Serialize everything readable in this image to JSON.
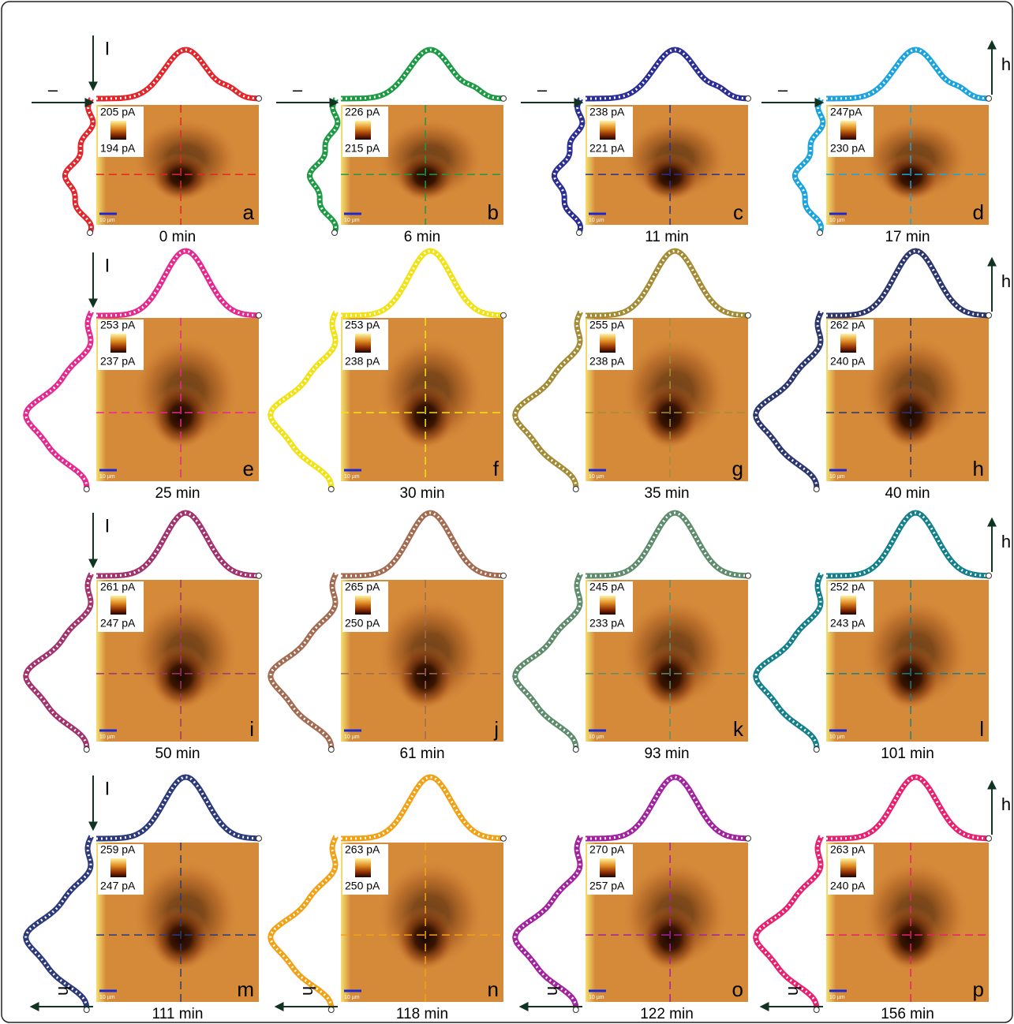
{
  "axis_labels": {
    "current": "I",
    "height": "h",
    "dash": "–"
  },
  "scale_bar": "10 µm",
  "panels": [
    {
      "letter": "a",
      "time": "0 min",
      "max": "205 pA",
      "min": "194 pA",
      "color": "#e2262b"
    },
    {
      "letter": "b",
      "time": "6 min",
      "max": "226 pA",
      "min": "215 pA",
      "color": "#1c9a44"
    },
    {
      "letter": "c",
      "time": "11 min",
      "max": "238 pA",
      "min": "221 pA",
      "color": "#2b2f95"
    },
    {
      "letter": "d",
      "time": "17 min",
      "max": "247pA",
      "min": "230 pA",
      "color": "#1ba3df"
    },
    {
      "letter": "e",
      "time": "25 min",
      "max": "253 pA",
      "min": "237 pA",
      "color": "#e4298f"
    },
    {
      "letter": "f",
      "time": "30 min",
      "max": "253 pA",
      "min": "238 pA",
      "color": "#f2e214"
    },
    {
      "letter": "g",
      "time": "35 min",
      "max": "255 pA",
      "min": "238 pA",
      "color": "#a38c35"
    },
    {
      "letter": "h",
      "time": "40 min",
      "max": "262 pA",
      "min": "240 pA",
      "color": "#2c376f"
    },
    {
      "letter": "i",
      "time": "50 min",
      "max": "261 pA",
      "min": "247 pA",
      "color": "#a2336c"
    },
    {
      "letter": "j",
      "time": "61 min",
      "max": "265 pA",
      "min": "250 pA",
      "color": "#a36b52"
    },
    {
      "letter": "k",
      "time": "93 min",
      "max": "245 pA",
      "min": "233 pA",
      "color": "#5e8c6c"
    },
    {
      "letter": "l",
      "time": "101 min",
      "max": "252 pA",
      "min": "243 pA",
      "color": "#13808b"
    },
    {
      "letter": "m",
      "time": "111 min",
      "max": "259 pA",
      "min": "247 pA",
      "color": "#2c3a7b"
    },
    {
      "letter": "n",
      "time": "118 min",
      "max": "263 pA",
      "min": "250 pA",
      "color": "#f2a114"
    },
    {
      "letter": "o",
      "time": "122 min",
      "max": "270 pA",
      "min": "257 pA",
      "color": "#a3229f"
    },
    {
      "letter": "p",
      "time": "156 min",
      "max": "263 pA",
      "min": "240 pA",
      "color": "#e8206f"
    }
  ]
}
